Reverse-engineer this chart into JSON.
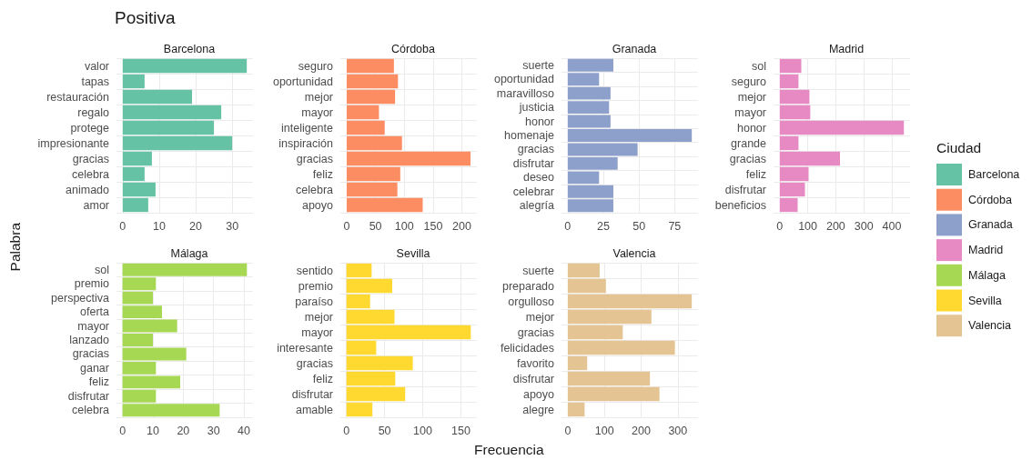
{
  "chart_data": [
    {
      "type": "other",
      "title": "Positiva",
      "xlabel": "Frecuencia",
      "ylabel": "Palabra"
    },
    {
      "type": "bar",
      "orientation": "horizontal",
      "title": "Barcelona",
      "grid": true,
      "legend": "right",
      "legend_title": "Ciudad",
      "categories": [
        "valor",
        "tapas",
        "restauración",
        "regalo",
        "protege",
        "impresionante",
        "gracias",
        "celebra",
        "animado",
        "amor"
      ],
      "xlim": [
        -1.7,
        35.7
      ],
      "xticks": [
        0,
        10,
        20,
        30
      ],
      "series": [
        {
          "name": "Barcelona",
          "color": "#66c2a5",
          "values": [
            34,
            6,
            19,
            27,
            25,
            30,
            8,
            6,
            9,
            7
          ]
        }
      ]
    },
    {
      "type": "bar",
      "orientation": "horizontal",
      "title": "Córdoba",
      "grid": true,
      "legend": "right",
      "categories": [
        "seguro",
        "oportunidad",
        "mejor",
        "mayor",
        "inteligente",
        "inspiración",
        "gracias",
        "feliz",
        "celebra",
        "apoyo"
      ],
      "xlim": [
        -11,
        226
      ],
      "xticks": [
        0,
        50,
        100,
        150,
        200
      ],
      "series": [
        {
          "name": "Córdoba",
          "color": "#fc8d62",
          "values": [
            82,
            89,
            84,
            56,
            66,
            96,
            215,
            93,
            88,
            132
          ]
        }
      ]
    },
    {
      "type": "bar",
      "orientation": "horizontal",
      "title": "Granada",
      "grid": true,
      "legend": "right",
      "categories": [
        "suerte",
        "oportunidad",
        "maravilloso",
        "justicia",
        "honor",
        "homenaje",
        "gracias",
        "disfrutar",
        "deseo",
        "celebrar",
        "alegría"
      ],
      "xlim": [
        -4.35,
        91.35
      ],
      "xticks": [
        0,
        25,
        50,
        75
      ],
      "series": [
        {
          "name": "Granada",
          "color": "#8da0cb",
          "values": [
            32,
            22,
            30,
            29,
            30,
            87,
            49,
            35,
            22,
            32,
            32
          ]
        }
      ]
    },
    {
      "type": "bar",
      "orientation": "horizontal",
      "title": "Madrid",
      "grid": true,
      "legend": "right",
      "categories": [
        "sol",
        "seguro",
        "mejor",
        "mayor",
        "honor",
        "grande",
        "gracias",
        "feliz",
        "disfrutar",
        "beneficios"
      ],
      "xlim": [
        -22,
        465
      ],
      "xticks": [
        0,
        100,
        200,
        300,
        400
      ],
      "series": [
        {
          "name": "Madrid",
          "color": "#e78ac3",
          "values": [
            77,
            67,
            106,
            109,
            443,
            67,
            215,
            103,
            90,
            64
          ]
        }
      ]
    },
    {
      "type": "bar",
      "orientation": "horizontal",
      "title": "Málaga",
      "grid": true,
      "legend": "right",
      "categories": [
        "sol",
        "premio",
        "perspectiva",
        "oferta",
        "mayor",
        "lanzado",
        "gracias",
        "ganar",
        "feliz",
        "disfrutar",
        "celebra"
      ],
      "xlim": [
        -2,
        43
      ],
      "xticks": [
        0,
        10,
        20,
        30,
        40
      ],
      "series": [
        {
          "name": "Málaga",
          "color": "#a6d854",
          "values": [
            41,
            11,
            10,
            13,
            18,
            10,
            21,
            11,
            19,
            11,
            32
          ]
        }
      ]
    },
    {
      "type": "bar",
      "orientation": "horizontal",
      "title": "Sevilla",
      "grid": true,
      "legend": "right",
      "categories": [
        "sentido",
        "premio",
        "paraíso",
        "mejor",
        "mayor",
        "interesante",
        "gracias",
        "feliz",
        "disfrutar",
        "amable"
      ],
      "xlim": [
        -8,
        171
      ],
      "xticks": [
        0,
        50,
        100,
        150
      ],
      "series": [
        {
          "name": "Sevilla",
          "color": "#ffd92f",
          "values": [
            33,
            60,
            31,
            63,
            163,
            39,
            87,
            64,
            77,
            34
          ]
        }
      ]
    },
    {
      "type": "bar",
      "orientation": "horizontal",
      "title": "Valencia",
      "grid": true,
      "legend": "right",
      "categories": [
        "suerte",
        "preparado",
        "orgulloso",
        "mejor",
        "gracias",
        "felicidades",
        "favorito",
        "disfrutar",
        "apoyo",
        "alegre"
      ],
      "xlim": [
        -17,
        355
      ],
      "xticks": [
        0,
        100,
        200,
        300
      ],
      "series": [
        {
          "name": "Valencia",
          "color": "#e5c494",
          "values": [
            87,
            104,
            338,
            228,
            150,
            292,
            53,
            224,
            250,
            46
          ]
        }
      ]
    }
  ]
}
